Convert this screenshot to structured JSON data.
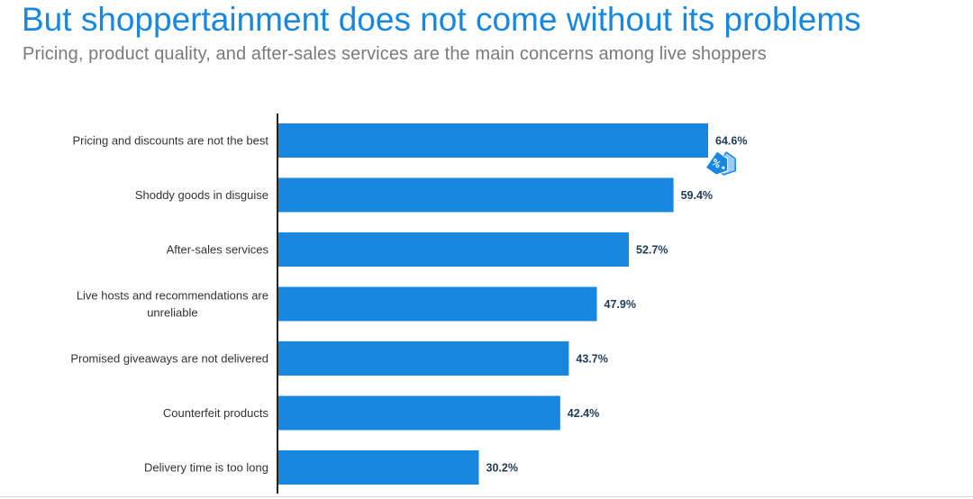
{
  "header": {
    "title": "But shoppertainment does not come without its problems",
    "subtitle": "Pricing, product quality, and after-sales services are the main concerns among live shoppers"
  },
  "colors": {
    "title": "#1787e0",
    "bar": "#1787e0",
    "value_label": "#1f3a5a",
    "axis": "#222222"
  },
  "tag_icon": "price-tag-percent-icon",
  "chart_data": {
    "type": "bar",
    "orientation": "horizontal",
    "title": "But shoppertainment does not come without its problems",
    "subtitle": "Pricing, product quality, and after-sales services are the main concerns among live shoppers",
    "xlabel": "",
    "ylabel": "",
    "unit": "%",
    "xlim": [
      0,
      100
    ],
    "grid": false,
    "categories": [
      [
        "Pricing and discounts are not the best"
      ],
      [
        "Shoddy goods in disguise"
      ],
      [
        "After-sales services"
      ],
      [
        "Live hosts and recommendations are",
        "unreliable"
      ],
      [
        "Promised giveaways are not delivered"
      ],
      [
        "Counterfeit products"
      ],
      [
        "Delivery time is too long"
      ]
    ],
    "values": [
      64.6,
      59.4,
      52.7,
      47.9,
      43.7,
      42.4,
      30.2
    ],
    "value_labels": [
      "64.6%",
      "59.4%",
      "52.7%",
      "47.9%",
      "43.7%",
      "42.4%",
      "30.2%"
    ]
  }
}
